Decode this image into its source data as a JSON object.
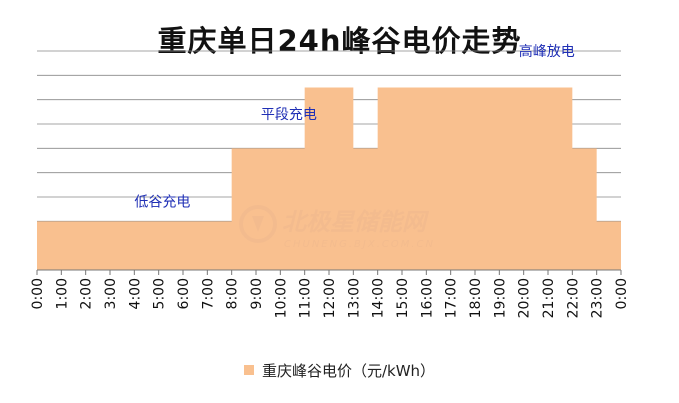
{
  "chart_data": {
    "type": "area",
    "title": "重庆单日24h峰谷电价走势",
    "x": [
      "0:00",
      "1:00",
      "2:00",
      "3:00",
      "4:00",
      "5:00",
      "6:00",
      "7:00",
      "8:00",
      "9:00",
      "10:00",
      "11:00",
      "12:00",
      "13:00",
      "14:00",
      "15:00",
      "16:00",
      "17:00",
      "18:00",
      "19:00",
      "20:00",
      "21:00",
      "22:00",
      "23:00",
      "0:00"
    ],
    "series": [
      {
        "name": "重庆峰谷电价（元/kWh）",
        "values": [
          2,
          2,
          2,
          2,
          2,
          2,
          2,
          2,
          5,
          5,
          5,
          7.5,
          7.5,
          5,
          7.5,
          7.5,
          7.5,
          7.5,
          7.5,
          7.5,
          7.5,
          7.5,
          5,
          2,
          2
        ]
      }
    ],
    "ylim": [
      0,
      9
    ],
    "grid": true,
    "legend_position": "bottom",
    "annotations": [
      {
        "text": "低谷充电",
        "x": 4.0,
        "y": 2.6
      },
      {
        "text": "平段充电",
        "x": 9.2,
        "y": 6.2
      },
      {
        "text": "高峰放电",
        "x": 19.8,
        "y": 8.8
      }
    ],
    "colors": {
      "fill": "#f9c08f",
      "grid": "#888888",
      "annotation": "#1f2fb5"
    }
  },
  "watermark": {
    "text": "北极星储能网",
    "subtext": "CHUNENG.BJX.COM.CN"
  }
}
